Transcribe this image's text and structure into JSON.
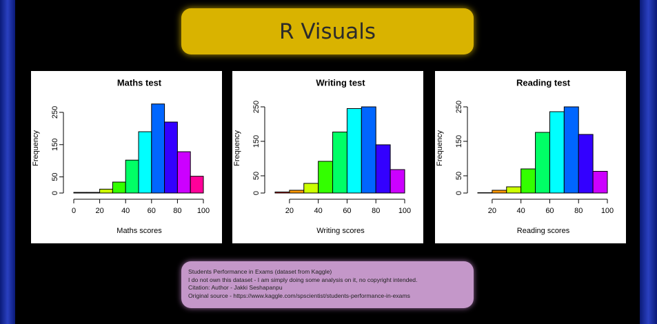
{
  "header": {
    "title": "R Visuals"
  },
  "chart_data": [
    {
      "type": "histogram",
      "title": "Maths test",
      "x_label": "Maths scores",
      "y_label": "Frequency",
      "bins": [
        0,
        10,
        20,
        30,
        40,
        50,
        60,
        70,
        80,
        90,
        100
      ],
      "values": [
        2,
        2,
        12,
        34,
        102,
        190,
        276,
        220,
        128,
        52
      ],
      "colors": [
        "#FF0000",
        "#FF9900",
        "#CCFF00",
        "#33FF00",
        "#00FF66",
        "#00FFFF",
        "#0066FF",
        "#3300FF",
        "#CC00FF",
        "#FF0099"
      ],
      "xlim": [
        0,
        100
      ],
      "xticks": [
        0,
        20,
        40,
        60,
        80,
        100
      ],
      "ylim": [
        0,
        282
      ],
      "yticks": [
        0,
        50,
        150,
        250
      ]
    },
    {
      "type": "histogram",
      "title": "Writing test",
      "x_label": "Writing scores",
      "y_label": "Frequency",
      "bins": [
        10,
        20,
        30,
        40,
        50,
        60,
        70,
        80,
        90,
        100
      ],
      "values": [
        3,
        8,
        28,
        92,
        177,
        245,
        250,
        140,
        68
      ],
      "colors": [
        "#FF0000",
        "#FF9900",
        "#CCFF00",
        "#33FF00",
        "#00FF66",
        "#00FFFF",
        "#0066FF",
        "#3300FF",
        "#CC00FF"
      ],
      "xlim": [
        10,
        100
      ],
      "xticks": [
        20,
        40,
        60,
        80,
        100
      ],
      "ylim": [
        0,
        264
      ],
      "yticks": [
        0,
        50,
        150,
        250
      ]
    },
    {
      "type": "histogram",
      "title": "Reading test",
      "x_label": "Reading scores",
      "y_label": "Frequency",
      "bins": [
        10,
        20,
        30,
        40,
        50,
        60,
        70,
        80,
        90,
        100
      ],
      "values": [
        1,
        8,
        18,
        70,
        176,
        236,
        250,
        170,
        63
      ],
      "colors": [
        "#FF0000",
        "#FF9900",
        "#CCFF00",
        "#33FF00",
        "#00FF66",
        "#00FFFF",
        "#0066FF",
        "#3300FF",
        "#CC00FF"
      ],
      "xlim": [
        10,
        100
      ],
      "xticks": [
        20,
        40,
        60,
        80,
        100
      ],
      "ylim": [
        0,
        264
      ],
      "yticks": [
        0,
        50,
        150,
        250
      ]
    }
  ],
  "footer": {
    "lines": [
      "Students Performance in Exams (dataset from Kaggle)",
      "I do not own this dataset - I am simply doing some analysis on it, no copyright intended.",
      "Citation: Author - Jakki Seshapanpu",
      "Original source - https://www.kaggle.com/spscientist/students-performance-in-exams"
    ]
  }
}
